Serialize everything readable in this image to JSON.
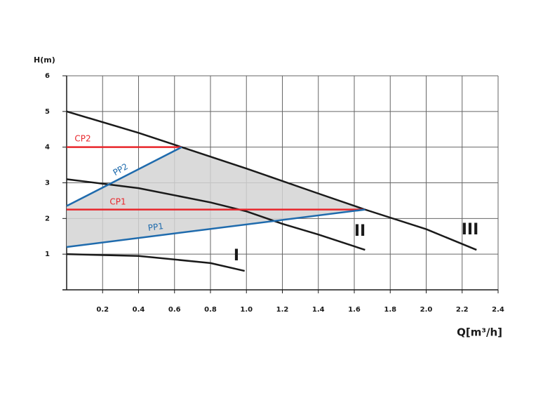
{
  "chart_data": {
    "type": "line",
    "xlabel": "Q[m³/h]",
    "ylabel": "H(m)",
    "xlim": [
      0,
      2.4
    ],
    "ylim": [
      0,
      6
    ],
    "xticks": [
      0.2,
      0.4,
      0.6,
      0.8,
      {
        "value": 1,
        "label": "1.0"
      },
      1.2,
      1.4,
      1.6,
      1.8,
      {
        "value": 2,
        "label": "2.0"
      },
      2.2,
      2.4
    ],
    "yticks": [
      1,
      2,
      3,
      4,
      5,
      6
    ],
    "grid": true,
    "series": [
      {
        "name": "III",
        "color": "#1a1a1a",
        "x": [
          0,
          0.4,
          0.64,
          1.0,
          1.4,
          1.66,
          2.0,
          2.28
        ],
        "values": [
          5,
          4.4,
          4.0,
          3.4,
          2.7,
          2.25,
          1.7,
          1.12
        ]
      },
      {
        "name": "II",
        "color": "#1a1a1a",
        "x": [
          0,
          0.4,
          0.8,
          1.0,
          1.2,
          1.4,
          1.66
        ],
        "values": [
          3.1,
          2.85,
          2.45,
          2.2,
          1.85,
          1.55,
          1.12
        ]
      },
      {
        "name": "I",
        "color": "#1a1a1a",
        "x": [
          0,
          0.4,
          0.8,
          0.99
        ],
        "values": [
          1.0,
          0.95,
          0.75,
          0.53
        ]
      },
      {
        "name": "CP2",
        "color": "#e8262b",
        "x": [
          0,
          0.64
        ],
        "values": [
          4.0,
          4.0
        ]
      },
      {
        "name": "CP1",
        "color": "#e8262b",
        "x": [
          0,
          1.66
        ],
        "values": [
          2.25,
          2.25
        ]
      },
      {
        "name": "PP2",
        "color": "#1f6bad",
        "x": [
          0,
          0.64
        ],
        "values": [
          2.35,
          4.0
        ]
      },
      {
        "name": "PP1",
        "color": "#1f6bad",
        "x": [
          0,
          1.66
        ],
        "values": [
          1.2,
          2.25
        ]
      }
    ]
  }
}
